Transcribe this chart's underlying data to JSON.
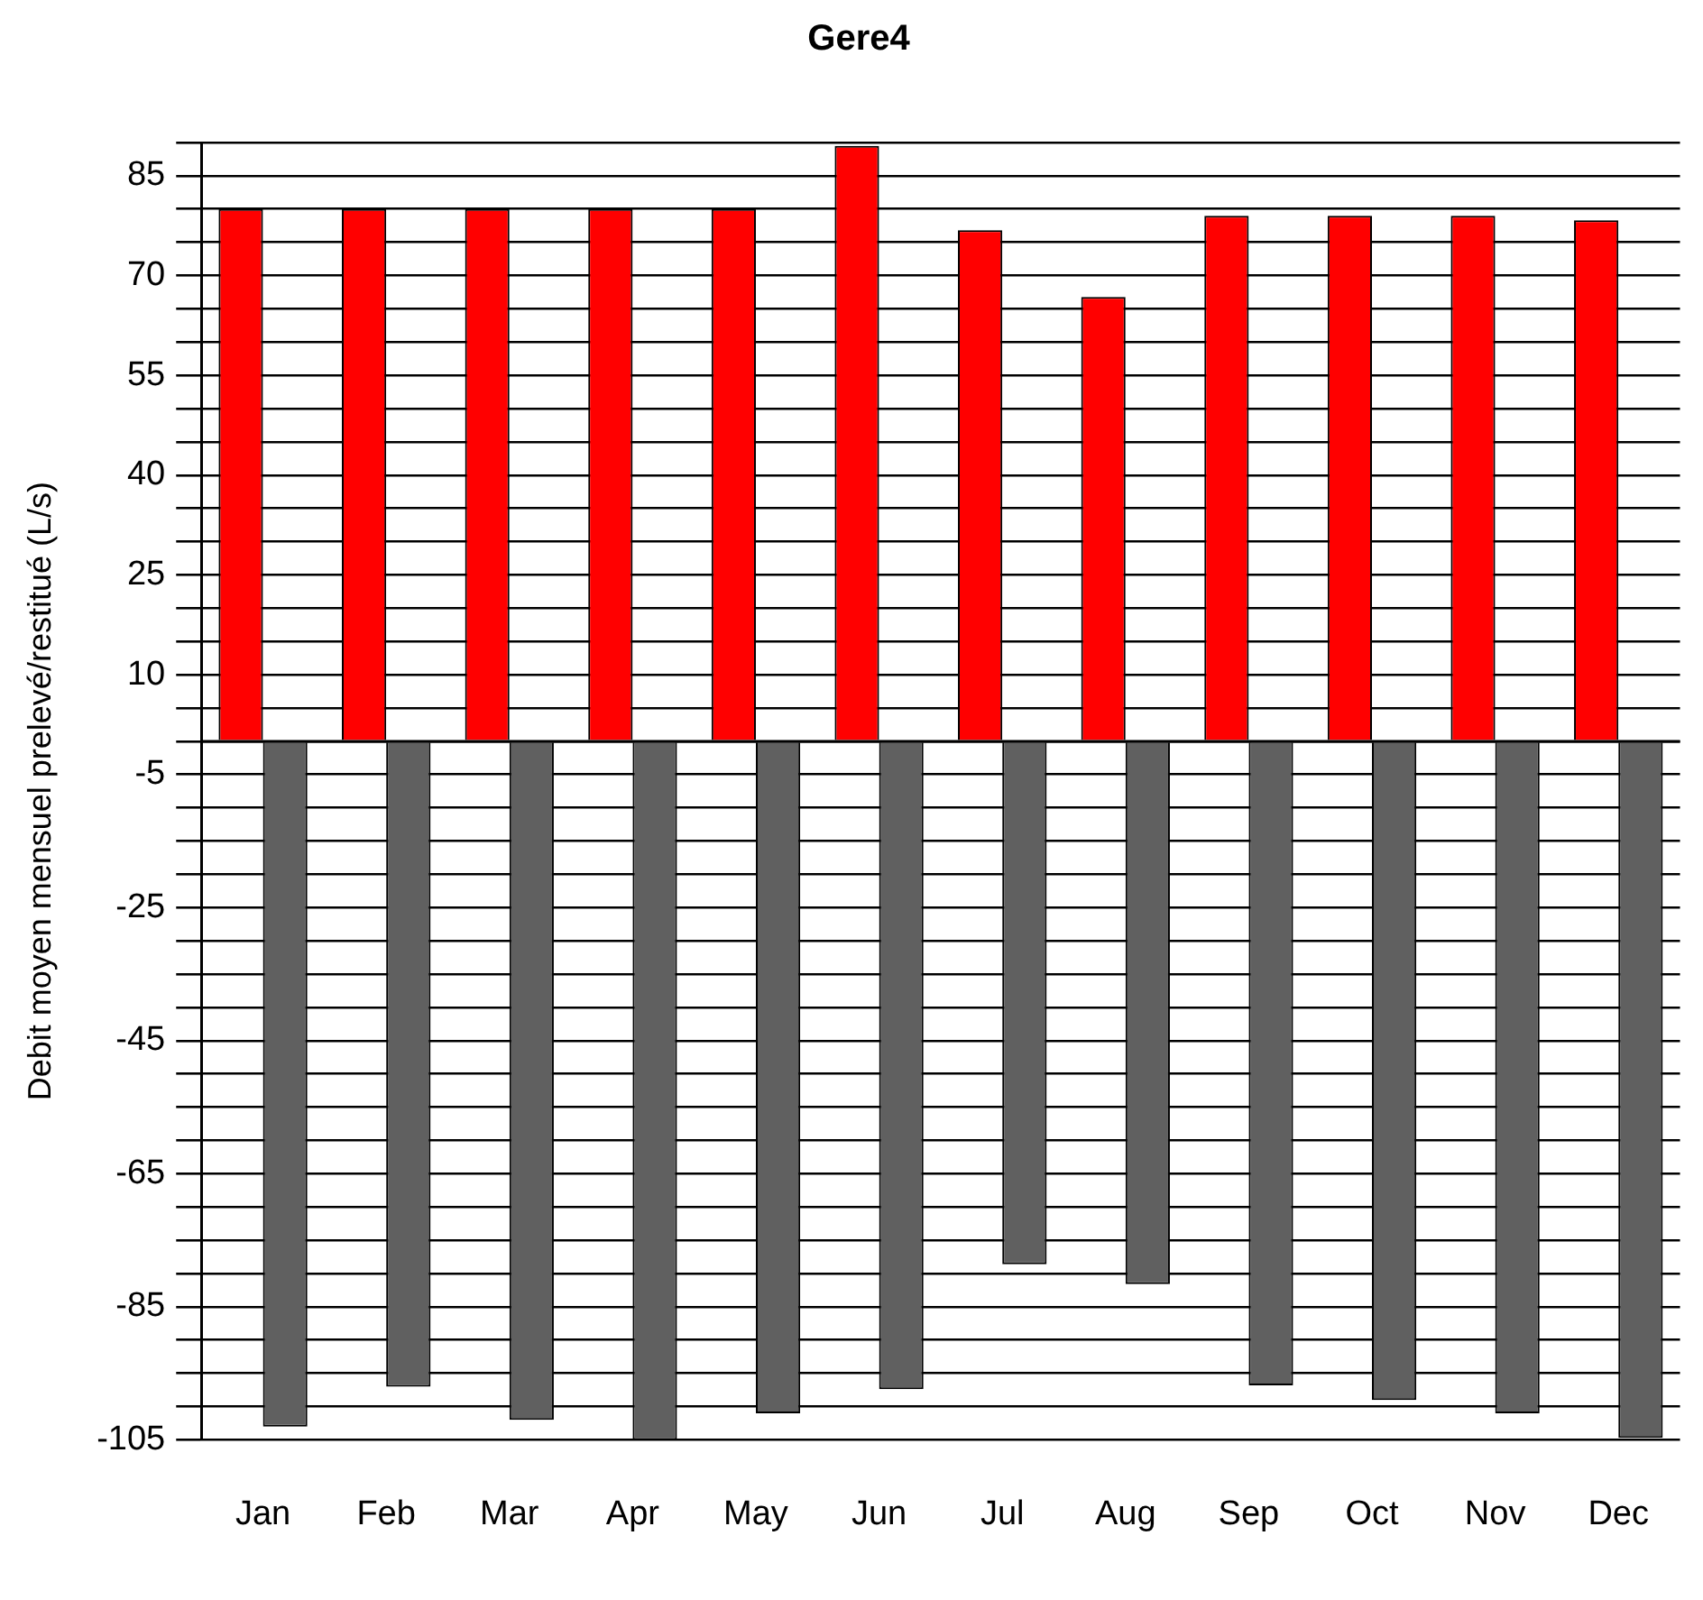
{
  "chart_data": {
    "type": "bar",
    "title": "Gere4",
    "ylabel": "Debit moyen mensuel prelevé/restitué (L/s)",
    "categories": [
      "Jan",
      "Feb",
      "Mar",
      "Apr",
      "May",
      "Jun",
      "Jul",
      "Aug",
      "Sep",
      "Oct",
      "Nov",
      "Dec"
    ],
    "series": [
      {
        "color": "#ff0000",
        "values": [
          80,
          80,
          80,
          80,
          80,
          89.5,
          76.8,
          66.8,
          79,
          79,
          79,
          78.3
        ]
      },
      {
        "color": "#606060",
        "values": [
          -103,
          -97,
          -102,
          -105,
          -101,
          -97.4,
          -78.6,
          -81.6,
          -96.8,
          -99,
          -101,
          -104.7
        ]
      }
    ],
    "ylim": [
      -105,
      90
    ],
    "yticks": [
      {
        "value": -105,
        "label": "-105"
      },
      {
        "value": -100,
        "label": null
      },
      {
        "value": -95,
        "label": null
      },
      {
        "value": -90,
        "label": null
      },
      {
        "value": -85,
        "label": "-85"
      },
      {
        "value": -80,
        "label": null
      },
      {
        "value": -75,
        "label": null
      },
      {
        "value": -70,
        "label": null
      },
      {
        "value": -65,
        "label": "-65"
      },
      {
        "value": -60,
        "label": null
      },
      {
        "value": -55,
        "label": null
      },
      {
        "value": -50,
        "label": null
      },
      {
        "value": -45,
        "label": "-45"
      },
      {
        "value": -40,
        "label": null
      },
      {
        "value": -35,
        "label": null
      },
      {
        "value": -30,
        "label": null
      },
      {
        "value": -25,
        "label": "-25"
      },
      {
        "value": -20,
        "label": null
      },
      {
        "value": -15,
        "label": null
      },
      {
        "value": -10,
        "label": null
      },
      {
        "value": -5,
        "label": "-5"
      },
      {
        "value": 0,
        "label": null
      },
      {
        "value": 5,
        "label": null
      },
      {
        "value": 10,
        "label": "10"
      },
      {
        "value": 15,
        "label": null
      },
      {
        "value": 20,
        "label": null
      },
      {
        "value": 25,
        "label": "25"
      },
      {
        "value": 30,
        "label": null
      },
      {
        "value": 35,
        "label": null
      },
      {
        "value": 40,
        "label": "40"
      },
      {
        "value": 45,
        "label": null
      },
      {
        "value": 50,
        "label": null
      },
      {
        "value": 55,
        "label": "55"
      },
      {
        "value": 60,
        "label": null
      },
      {
        "value": 65,
        "label": null
      },
      {
        "value": 70,
        "label": "70"
      },
      {
        "value": 75,
        "label": null
      },
      {
        "value": 80,
        "label": null
      },
      {
        "value": 85,
        "label": "85"
      },
      {
        "value": 90,
        "label": null
      }
    ],
    "grid": "y",
    "legend": false,
    "ref_lines": [
      {
        "axis": "y",
        "value": 0,
        "color": "#000000",
        "line_style": "solid"
      }
    ]
  }
}
